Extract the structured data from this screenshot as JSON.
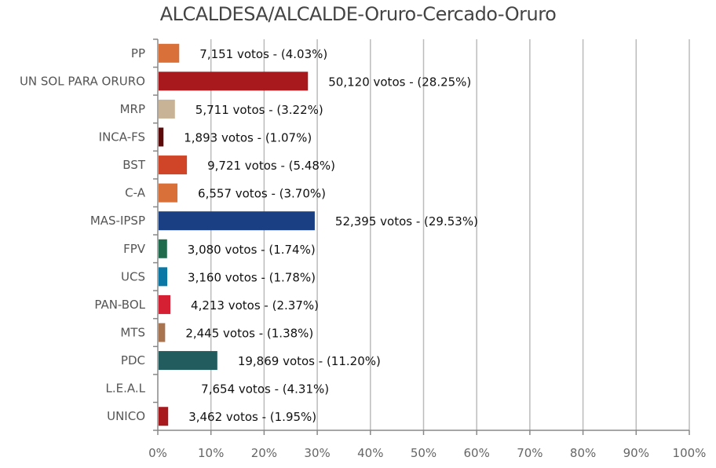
{
  "chart_data": {
    "type": "bar",
    "orientation": "horizontal",
    "title": "ALCALDESA/ALCALDE-Oruro-Cercado-Oruro",
    "categories": [
      "PP",
      "UN SOL PARA ORURO",
      "MRP",
      "INCA-FS",
      "BST",
      "C-A",
      "MAS-IPSP",
      "FPV",
      "UCS",
      "PAN-BOL",
      "MTS",
      "PDC",
      "L.E.A.L",
      "UNICO"
    ],
    "votes": [
      7151,
      50120,
      5711,
      1893,
      9721,
      6557,
      52395,
      3080,
      3160,
      4213,
      2445,
      19869,
      7654,
      3462
    ],
    "values": [
      4.03,
      28.25,
      3.22,
      1.07,
      5.48,
      3.7,
      29.53,
      1.74,
      1.78,
      2.37,
      1.38,
      11.2,
      4.31,
      1.95
    ],
    "data_labels": [
      "7,151 votos - (4.03%)",
      "50,120 votos - (28.25%)",
      "5,711 votos - (3.22%)",
      "1,893 votos - (1.07%)",
      "9,721 votos - (5.48%)",
      "6,557 votos - (3.70%)",
      "52,395 votos - (29.53%)",
      "3,080 votos - (1.74%)",
      "3,160 votos - (1.78%)",
      "4,213 votos - (2.37%)",
      "2,445 votos - (1.38%)",
      "19,869 votos - (11.20%)",
      "7,654 votos - (4.31%)",
      "3,462 votos - (1.95%)"
    ],
    "colors": [
      "#d9703a",
      "#a8191e",
      "#c9b396",
      "#5c0a0a",
      "#d04527",
      "#d9703a",
      "#1a3f82",
      "#1e6b4e",
      "#0a77a5",
      "#d42032",
      "#a87450",
      "#225c5f",
      "#ffffff",
      "#a8191e"
    ],
    "xlim": [
      0,
      100
    ],
    "x_ticks": [
      "0%",
      "10%",
      "20%",
      "30%",
      "40%",
      "50%",
      "60%",
      "70%",
      "80%",
      "90%",
      "100%"
    ],
    "grid": true
  }
}
